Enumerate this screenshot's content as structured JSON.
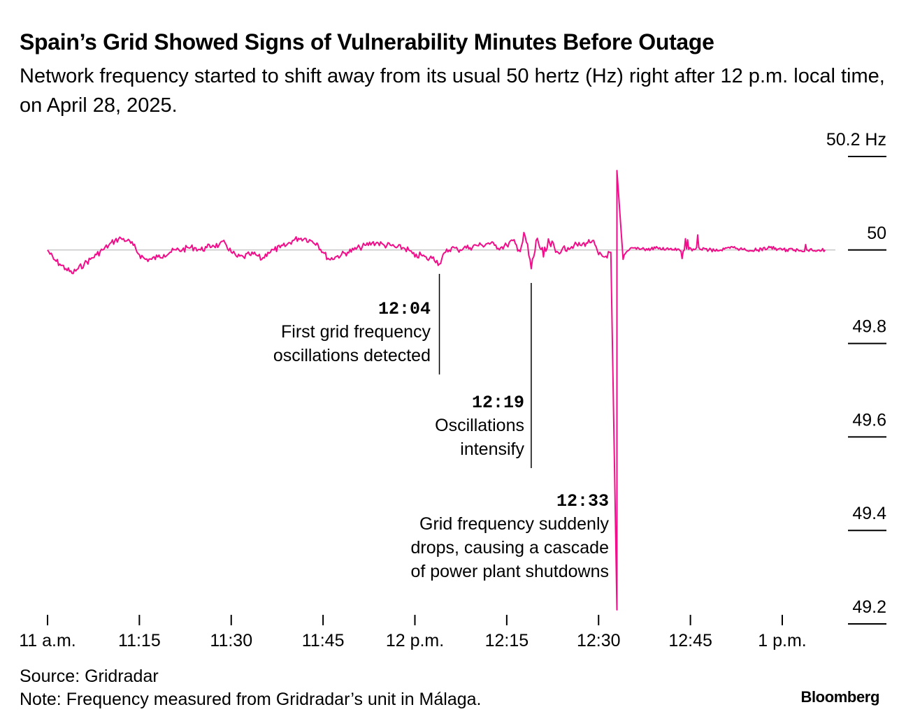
{
  "header": {
    "title": "Spain’s Grid Showed Signs of Vulnerability Minutes Before Outage",
    "subtitle": "Network frequency started to shift away from its usual 50 hertz (Hz) right after 12 p.m. local time, on April 28, 2025."
  },
  "footer": {
    "source": "Source: Gridradar",
    "note": "Note: Frequency measured from Gridradar’s unit in Málaga.",
    "logo": "Bloomberg"
  },
  "colors": {
    "line": "#f20e8a",
    "baseline": "#c8c8c8",
    "text": "#000000"
  },
  "chart_data": {
    "type": "line",
    "title": "Spain’s Grid Showed Signs of Vulnerability Minutes Before Outage",
    "xlabel": "",
    "ylabel": "",
    "y_unit": "Hz",
    "ylim": [
      49.2,
      50.2
    ],
    "xlim": [
      "11:00",
      "13:07"
    ],
    "reference_line": 50.0,
    "x_ticks": [
      {
        "t": "11:00",
        "label": "11 a.m."
      },
      {
        "t": "11:15",
        "label": "11:15"
      },
      {
        "t": "11:30",
        "label": "11:30"
      },
      {
        "t": "11:45",
        "label": "11:45"
      },
      {
        "t": "12:00",
        "label": "12 p.m."
      },
      {
        "t": "12:15",
        "label": "12:15"
      },
      {
        "t": "12:30",
        "label": "12:30"
      },
      {
        "t": "12:45",
        "label": "12:45"
      },
      {
        "t": "13:00",
        "label": "1 p.m."
      }
    ],
    "y_ticks": [
      {
        "value": 50.2,
        "label": "50.2 Hz"
      },
      {
        "value": 50.0,
        "label": "50"
      },
      {
        "value": 49.8,
        "label": "49.8"
      },
      {
        "value": 49.6,
        "label": "49.6"
      },
      {
        "value": 49.4,
        "label": "49.4"
      },
      {
        "value": 49.2,
        "label": "49.2"
      }
    ],
    "series": [
      {
        "values": [
          {
            "t": "11:00",
            "y": 50.0
          },
          {
            "t": "11:01",
            "y": 49.98
          },
          {
            "t": "11:02",
            "y": 49.97
          },
          {
            "t": "11:03",
            "y": 49.96
          },
          {
            "t": "11:04",
            "y": 49.95
          },
          {
            "t": "11:05",
            "y": 49.96
          },
          {
            "t": "11:06",
            "y": 49.97
          },
          {
            "t": "11:07",
            "y": 49.98
          },
          {
            "t": "11:08",
            "y": 49.99
          },
          {
            "t": "11:09",
            "y": 50.0
          },
          {
            "t": "11:10",
            "y": 50.01
          },
          {
            "t": "11:11",
            "y": 50.02
          },
          {
            "t": "11:12",
            "y": 50.025
          },
          {
            "t": "11:13",
            "y": 50.02
          },
          {
            "t": "11:14",
            "y": 50.01
          },
          {
            "t": "11:15",
            "y": 49.99
          },
          {
            "t": "11:16",
            "y": 49.98
          },
          {
            "t": "11:17",
            "y": 49.98
          },
          {
            "t": "11:18",
            "y": 49.985
          },
          {
            "t": "11:19",
            "y": 49.99
          },
          {
            "t": "11:20",
            "y": 49.995
          },
          {
            "t": "11:21",
            "y": 50.0
          },
          {
            "t": "11:22",
            "y": 50.0
          },
          {
            "t": "11:23",
            "y": 50.005
          },
          {
            "t": "11:24",
            "y": 50.005
          },
          {
            "t": "11:25",
            "y": 50.0
          },
          {
            "t": "11:26",
            "y": 50.005
          },
          {
            "t": "11:27",
            "y": 50.01
          },
          {
            "t": "11:28",
            "y": 50.01
          },
          {
            "t": "11:29",
            "y": 50.015
          },
          {
            "t": "11:30",
            "y": 49.995
          },
          {
            "t": "11:31",
            "y": 49.985
          },
          {
            "t": "11:32",
            "y": 49.985
          },
          {
            "t": "11:33",
            "y": 49.99
          },
          {
            "t": "11:34",
            "y": 49.99
          },
          {
            "t": "11:35",
            "y": 49.98
          },
          {
            "t": "11:36",
            "y": 49.995
          },
          {
            "t": "11:37",
            "y": 50.0
          },
          {
            "t": "11:38",
            "y": 50.005
          },
          {
            "t": "11:39",
            "y": 50.01
          },
          {
            "t": "11:40",
            "y": 50.02
          },
          {
            "t": "11:41",
            "y": 50.025
          },
          {
            "t": "11:42",
            "y": 50.025
          },
          {
            "t": "11:43",
            "y": 50.02
          },
          {
            "t": "11:44",
            "y": 50.015
          },
          {
            "t": "11:45",
            "y": 49.995
          },
          {
            "t": "11:46",
            "y": 49.98
          },
          {
            "t": "11:47",
            "y": 49.985
          },
          {
            "t": "11:48",
            "y": 49.99
          },
          {
            "t": "11:49",
            "y": 49.995
          },
          {
            "t": "11:50",
            "y": 50.0
          },
          {
            "t": "11:51",
            "y": 50.005
          },
          {
            "t": "11:52",
            "y": 50.01
          },
          {
            "t": "11:53",
            "y": 50.015
          },
          {
            "t": "11:54",
            "y": 50.015
          },
          {
            "t": "11:55",
            "y": 50.01
          },
          {
            "t": "11:56",
            "y": 50.01
          },
          {
            "t": "11:57",
            "y": 50.005
          },
          {
            "t": "11:58",
            "y": 50.005
          },
          {
            "t": "11:59",
            "y": 50.0
          },
          {
            "t": "12:00",
            "y": 49.985
          },
          {
            "t": "12:01",
            "y": 49.99
          },
          {
            "t": "12:02",
            "y": 49.98
          },
          {
            "t": "12:03",
            "y": 49.985
          },
          {
            "t": "12:04",
            "y": 49.97
          },
          {
            "t": "12:05",
            "y": 49.995
          },
          {
            "t": "12:06",
            "y": 50.005
          },
          {
            "t": "12:07",
            "y": 50.0
          },
          {
            "t": "12:08",
            "y": 50.005
          },
          {
            "t": "12:09",
            "y": 50.005
          },
          {
            "t": "12:10",
            "y": 50.01
          },
          {
            "t": "12:11",
            "y": 50.01
          },
          {
            "t": "12:12",
            "y": 50.015
          },
          {
            "t": "12:13",
            "y": 50.01
          },
          {
            "t": "12:14",
            "y": 50.005
          },
          {
            "t": "12:15",
            "y": 50.01
          },
          {
            "t": "12:16",
            "y": 50.02
          },
          {
            "t": "12:17",
            "y": 50.0
          },
          {
            "t": "12:18",
            "y": 50.03
          },
          {
            "t": "12:19",
            "y": 49.96
          },
          {
            "t": "12:20",
            "y": 50.025
          },
          {
            "t": "12:21",
            "y": 49.985
          },
          {
            "t": "12:22",
            "y": 50.015
          },
          {
            "t": "12:23",
            "y": 49.995
          },
          {
            "t": "12:24",
            "y": 50.0
          },
          {
            "t": "12:25",
            "y": 50.005
          },
          {
            "t": "12:26",
            "y": 50.01
          },
          {
            "t": "12:27",
            "y": 50.01
          },
          {
            "t": "12:28",
            "y": 50.015
          },
          {
            "t": "12:29",
            "y": 50.02
          },
          {
            "t": "12:30",
            "y": 49.99
          },
          {
            "t": "12:31",
            "y": 49.985
          },
          {
            "t": "12:32",
            "y": 49.995
          },
          {
            "t": "12:33",
            "y": 49.23
          },
          {
            "t": "12:33",
            "y": 50.17
          },
          {
            "t": "12:34",
            "y": 49.98
          },
          {
            "t": "12:35",
            "y": 50.0
          },
          {
            "t": "12:36",
            "y": 50.005
          },
          {
            "t": "12:38",
            "y": 50.0
          },
          {
            "t": "12:40",
            "y": 50.005
          },
          {
            "t": "12:42",
            "y": 50.0
          },
          {
            "t": "12:44",
            "y": 50.0
          },
          {
            "t": "12:46",
            "y": 50.005
          },
          {
            "t": "12:48",
            "y": 50.0
          },
          {
            "t": "12:50",
            "y": 50.0
          },
          {
            "t": "12:52",
            "y": 50.005
          },
          {
            "t": "12:54",
            "y": 50.0
          },
          {
            "t": "12:56",
            "y": 50.0
          },
          {
            "t": "12:58",
            "y": 50.005
          },
          {
            "t": "13:00",
            "y": 50.0
          },
          {
            "t": "13:02",
            "y": 50.0
          },
          {
            "t": "13:04",
            "y": 50.0
          },
          {
            "t": "13:06",
            "y": 50.0
          },
          {
            "t": "13:07",
            "y": 50.0
          }
        ]
      }
    ],
    "annotations": [
      {
        "time": "12:04",
        "lines": [
          "First grid frequency",
          "oscillations detected"
        ]
      },
      {
        "time": "12:19",
        "lines": [
          "Oscillations",
          "intensify"
        ]
      },
      {
        "time": "12:33",
        "lines": [
          "Grid frequency suddenly",
          "drops, causing a cascade",
          "of power plant shutdowns"
        ]
      }
    ]
  }
}
